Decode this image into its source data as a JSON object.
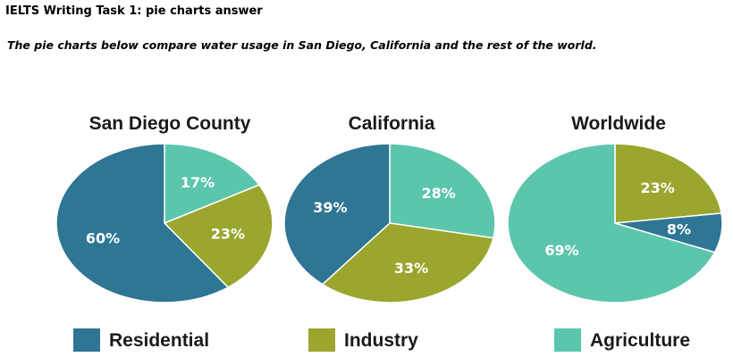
{
  "page": {
    "heading": "IELTS Writing Task 1: pie charts answer",
    "subheading": "The pie charts below compare water usage in San Diego, California and the rest of the world."
  },
  "colors": {
    "Residential": "#2e7693",
    "Industry": "#9aa62d",
    "Agriculture": "#5cc6ac"
  },
  "chart_data": [
    {
      "type": "pie",
      "title": "San Diego County",
      "categories": [
        "Agriculture",
        "Industry",
        "Residential"
      ],
      "values": [
        17,
        23,
        60
      ],
      "labels": [
        "17%",
        "23%",
        "60%"
      ]
    },
    {
      "type": "pie",
      "title": "California",
      "categories": [
        "Agriculture",
        "Industry",
        "Residential"
      ],
      "values": [
        28,
        33,
        39
      ],
      "labels": [
        "28%",
        "33%",
        "39%"
      ]
    },
    {
      "type": "pie",
      "title": "Worldwide",
      "categories": [
        "Industry",
        "Residential",
        "Agriculture"
      ],
      "values": [
        23,
        8,
        69
      ],
      "labels": [
        "23%",
        "8%",
        "69%"
      ]
    }
  ],
  "legend": [
    "Residential",
    "Industry",
    "Agriculture"
  ]
}
